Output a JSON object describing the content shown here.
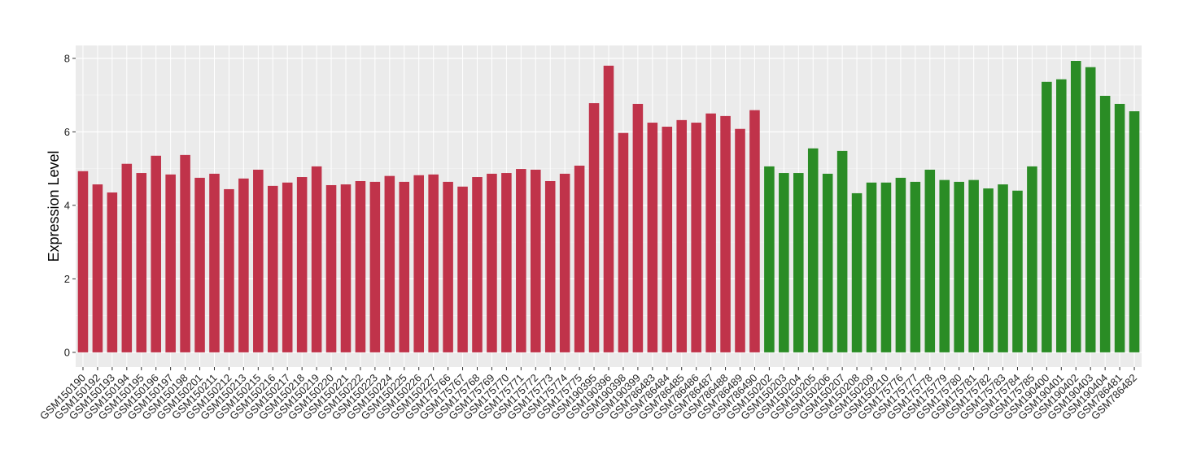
{
  "chart_data": {
    "type": "bar",
    "y_label": "Expression Level",
    "categories": [
      "GSM150190",
      "GSM150192",
      "GSM150193",
      "GSM150194",
      "GSM150195",
      "GSM150196",
      "GSM150197",
      "GSM150198",
      "GSM150201",
      "GSM150211",
      "GSM150212",
      "GSM150213",
      "GSM150215",
      "GSM150216",
      "GSM150217",
      "GSM150218",
      "GSM150219",
      "GSM150220",
      "GSM150221",
      "GSM150222",
      "GSM150223",
      "GSM150224",
      "GSM150225",
      "GSM150226",
      "GSM150227",
      "GSM175766",
      "GSM175767",
      "GSM175768",
      "GSM175769",
      "GSM175770",
      "GSM175771",
      "GSM175772",
      "GSM175773",
      "GSM175774",
      "GSM175775",
      "GSM190395",
      "GSM190396",
      "GSM190398",
      "GSM190399",
      "GSM786483",
      "GSM786484",
      "GSM786485",
      "GSM786486",
      "GSM786487",
      "GSM786488",
      "GSM786489",
      "GSM786490",
      "GSM150202",
      "GSM150203",
      "GSM150204",
      "GSM150205",
      "GSM150206",
      "GSM150207",
      "GSM150208",
      "GSM150209",
      "GSM150210",
      "GSM175776",
      "GSM175777",
      "GSM175778",
      "GSM175779",
      "GSM175780",
      "GSM175781",
      "GSM175782",
      "GSM175783",
      "GSM175784",
      "GSM175785",
      "GSM190400",
      "GSM190401",
      "GSM190402",
      "GSM190403",
      "GSM190404",
      "GSM786481",
      "GSM786482"
    ],
    "values": [
      4.93,
      4.57,
      4.35,
      5.13,
      4.88,
      5.35,
      4.84,
      5.37,
      4.75,
      4.86,
      4.44,
      4.73,
      4.97,
      4.53,
      4.62,
      4.77,
      5.06,
      4.55,
      4.57,
      4.66,
      4.64,
      4.8,
      4.64,
      4.82,
      4.84,
      4.64,
      4.51,
      4.77,
      4.86,
      4.88,
      4.99,
      4.97,
      4.66,
      4.86,
      5.08,
      6.78,
      7.8,
      5.97,
      6.76,
      6.25,
      6.14,
      6.32,
      6.25,
      6.5,
      6.43,
      6.08,
      6.59,
      5.06,
      4.88,
      4.88,
      5.55,
      4.86,
      5.48,
      4.33,
      4.62,
      4.62,
      4.75,
      4.64,
      4.97,
      4.69,
      4.64,
      4.69,
      4.46,
      4.57,
      4.4,
      5.06,
      7.36,
      7.43,
      7.93,
      7.76,
      6.98,
      6.76,
      6.56
    ],
    "colors": [
      "#c0334a",
      "#c0334a",
      "#c0334a",
      "#c0334a",
      "#c0334a",
      "#c0334a",
      "#c0334a",
      "#c0334a",
      "#c0334a",
      "#c0334a",
      "#c0334a",
      "#c0334a",
      "#c0334a",
      "#c0334a",
      "#c0334a",
      "#c0334a",
      "#c0334a",
      "#c0334a",
      "#c0334a",
      "#c0334a",
      "#c0334a",
      "#c0334a",
      "#c0334a",
      "#c0334a",
      "#c0334a",
      "#c0334a",
      "#c0334a",
      "#c0334a",
      "#c0334a",
      "#c0334a",
      "#c0334a",
      "#c0334a",
      "#c0334a",
      "#c0334a",
      "#c0334a",
      "#c0334a",
      "#c0334a",
      "#c0334a",
      "#c0334a",
      "#c0334a",
      "#c0334a",
      "#c0334a",
      "#c0334a",
      "#c0334a",
      "#c0334a",
      "#c0334a",
      "#c0334a",
      "#2a8c25",
      "#2a8c25",
      "#2a8c25",
      "#2a8c25",
      "#2a8c25",
      "#2a8c25",
      "#2a8c25",
      "#2a8c25",
      "#2a8c25",
      "#2a8c25",
      "#2a8c25",
      "#2a8c25",
      "#2a8c25",
      "#2a8c25",
      "#2a8c25",
      "#2a8c25",
      "#2a8c25",
      "#2a8c25",
      "#2a8c25",
      "#2a8c25",
      "#2a8c25",
      "#2a8c25",
      "#2a8c25",
      "#2a8c25",
      "#2a8c25",
      "#2a8c25"
    ],
    "ylim": [
      -0.4,
      8.35
    ],
    "yticks": [
      0,
      2,
      4,
      6,
      8
    ],
    "grid": true
  }
}
